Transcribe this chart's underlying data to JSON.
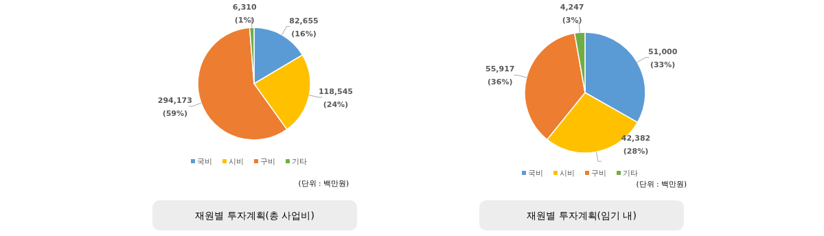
{
  "chart_data": [
    {
      "type": "pie",
      "title": "재원별 투자계획(총 사업비)",
      "categories": [
        "국비",
        "시비",
        "구비",
        "기타"
      ],
      "values": [
        82655,
        118545,
        294173,
        6310
      ],
      "colors": [
        "#5b9bd5",
        "#ffc000",
        "#ed7d31",
        "#70ad47"
      ],
      "value_labels": [
        "82,655\n(16%)",
        "118,545\n(24%)",
        "294,173\n(59%)",
        "6,310\n(1%)"
      ],
      "legend": "bottom",
      "annotations": [
        "(단위 : 백만원)"
      ]
    },
    {
      "type": "pie",
      "title": "재원별 투자계획(임기 내)",
      "categories": [
        "국비",
        "시비",
        "구비",
        "기타"
      ],
      "values": [
        51000,
        42382,
        55917,
        4247
      ],
      "colors": [
        "#5b9bd5",
        "#ffc000",
        "#ed7d31",
        "#70ad47"
      ],
      "value_labels": [
        "51,000\n(33%)",
        "42,382\n(28%)",
        "55,917\n(36%)",
        "4,247\n(3%)"
      ],
      "legend": "bottom",
      "annotations": [
        "(단위 : 백만원)"
      ]
    }
  ]
}
